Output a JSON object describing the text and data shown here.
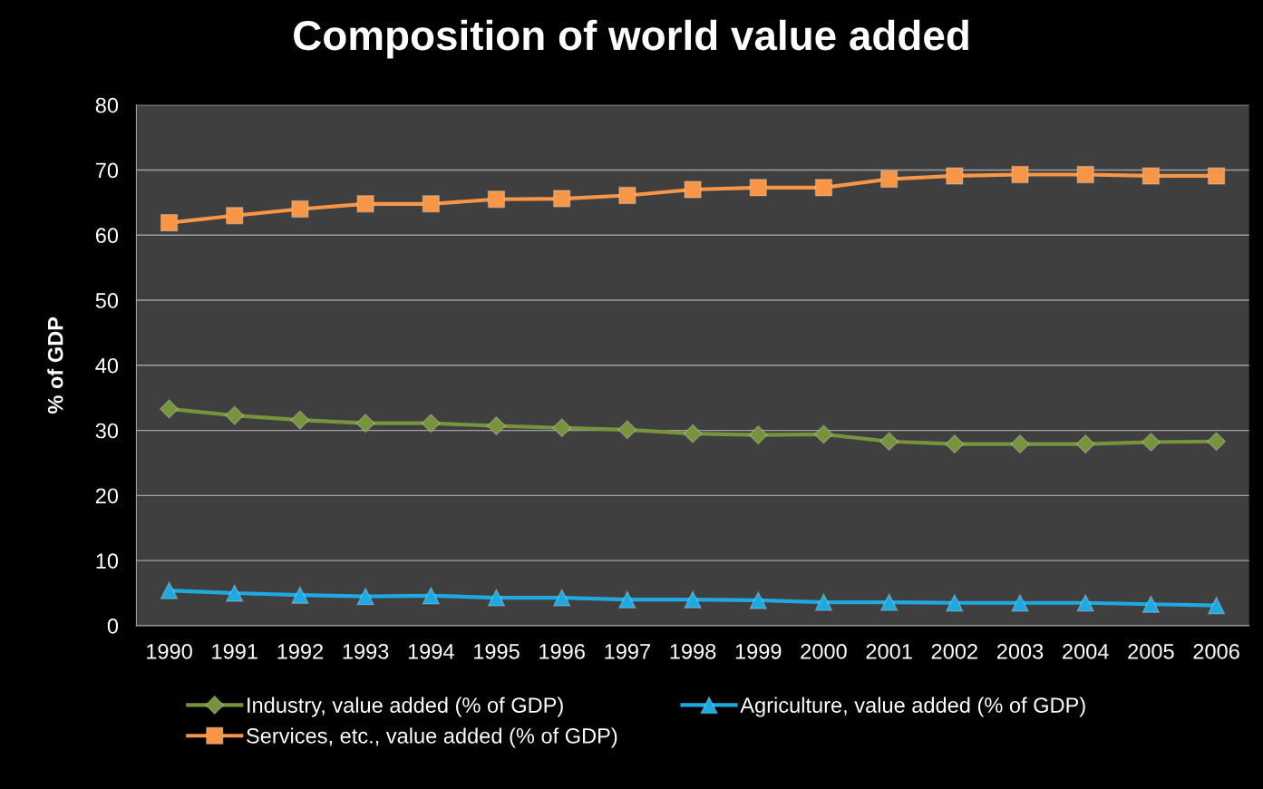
{
  "chart_data": {
    "type": "line",
    "title": "Composition of world value added",
    "ylabel": "% of GDP",
    "categories": [
      "1990",
      "1991",
      "1992",
      "1993",
      "1994",
      "1995",
      "1996",
      "1997",
      "1998",
      "1999",
      "2000",
      "2001",
      "2002",
      "2003",
      "2004",
      "2005",
      "2006"
    ],
    "series": [
      {
        "name": "Industry, value added (% of GDP)",
        "color": "#77933c",
        "marker": "diamond",
        "values": [
          33.3,
          32.3,
          31.6,
          31.1,
          31.1,
          30.7,
          30.4,
          30.1,
          29.5,
          29.3,
          29.4,
          28.3,
          27.9,
          27.9,
          27.9,
          28.2,
          28.3
        ]
      },
      {
        "name": "Services, etc., value added (% of GDP)",
        "color": "#f79646",
        "marker": "square",
        "values": [
          61.9,
          63.0,
          64.0,
          64.8,
          64.8,
          65.5,
          65.6,
          66.1,
          67.0,
          67.3,
          67.3,
          68.6,
          69.1,
          69.3,
          69.3,
          69.1,
          69.1
        ]
      },
      {
        "name": "Agriculture, value added (% of GDP)",
        "color": "#1fa9e1",
        "marker": "triangle",
        "values": [
          5.4,
          5.0,
          4.7,
          4.5,
          4.6,
          4.3,
          4.3,
          4.0,
          4.0,
          3.9,
          3.6,
          3.6,
          3.5,
          3.5,
          3.5,
          3.3,
          3.1
        ]
      }
    ],
    "ylim": [
      0,
      80
    ],
    "yticks": [
      0,
      10,
      20,
      30,
      40,
      50,
      60,
      70,
      80
    ],
    "grid": "y",
    "legend": "bottom",
    "line_style": "solid"
  }
}
